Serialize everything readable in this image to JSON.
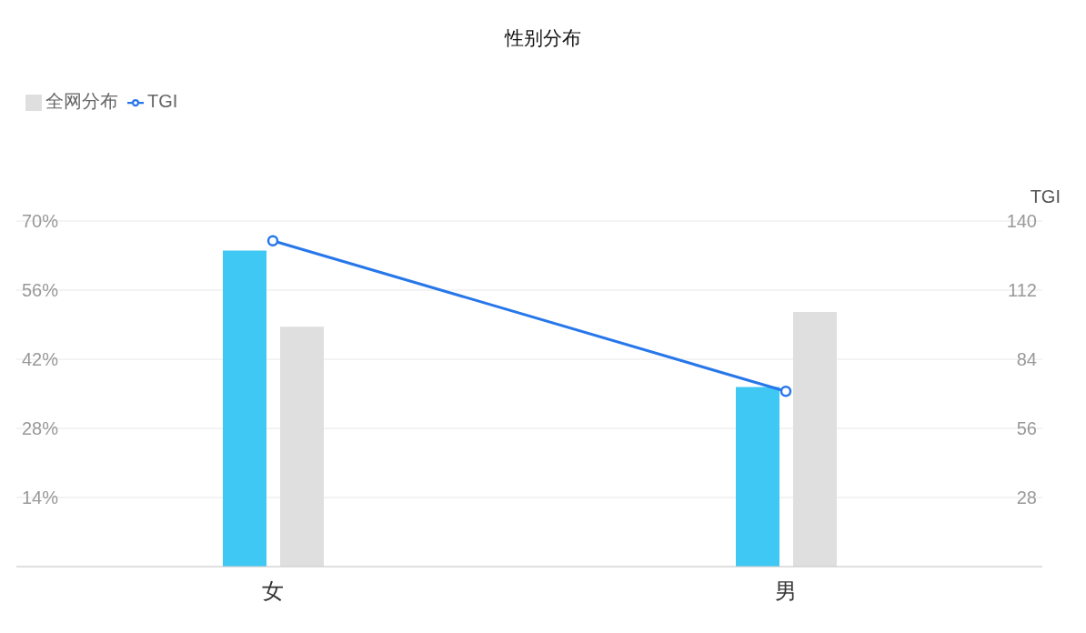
{
  "chart_data": {
    "type": "bar",
    "title": "性别分布",
    "y2label": "TGI",
    "categories": [
      "女",
      "男"
    ],
    "series": [
      {
        "color": "#40c8f4",
        "values": [
          64,
          36.4
        ]
      },
      {
        "name": "全网分布",
        "color": "#dfdfdf",
        "values": [
          48.6,
          51.6
        ]
      },
      {
        "type": "line",
        "name": "TGI",
        "color": "#2777ea",
        "axis": "y2",
        "marker": "circle",
        "values": [
          132,
          71
        ]
      }
    ],
    "ylim": [
      0,
      70
    ],
    "yticks": [
      {
        "value": 14,
        "label": "14%"
      },
      {
        "value": 28,
        "label": "28%"
      },
      {
        "value": 42,
        "label": "42%"
      },
      {
        "value": 56,
        "label": "56%"
      },
      {
        "value": 70,
        "label": "70%"
      }
    ],
    "y2lim": [
      0,
      140
    ],
    "y2ticks": [
      28,
      56,
      84,
      112,
      140
    ],
    "grid": "y",
    "legend": "top left"
  }
}
